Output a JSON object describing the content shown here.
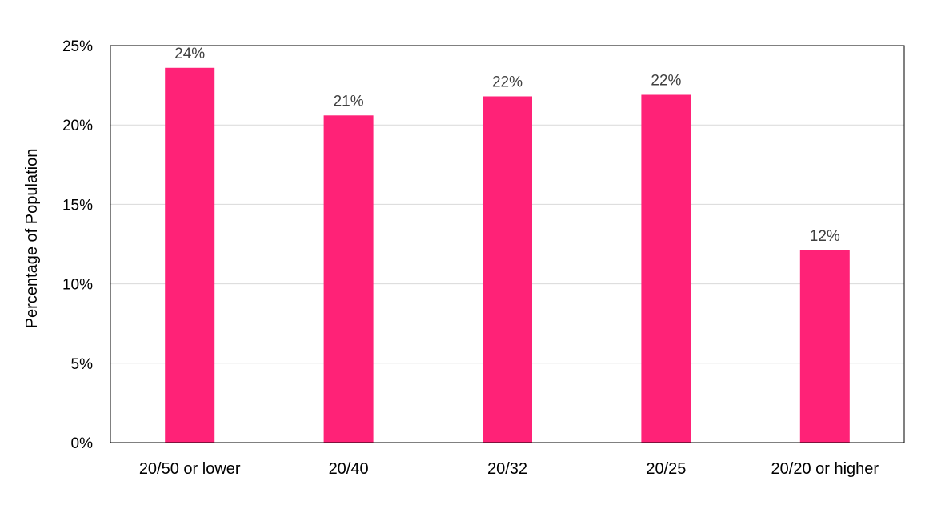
{
  "chart_data": {
    "type": "bar",
    "title": "",
    "xlabel": "",
    "ylabel": "Percentage of Population",
    "categories": [
      "20/50 or lower",
      "20/40",
      "20/32",
      "20/25",
      "20/20 or higher"
    ],
    "values": [
      23.6,
      20.6,
      21.8,
      21.9,
      12.1
    ],
    "data_labels": [
      "24%",
      "21%",
      "22%",
      "22%",
      "12%"
    ],
    "ylim": [
      0,
      25
    ],
    "yticks": [
      0,
      5,
      10,
      15,
      20,
      25
    ],
    "ytick_labels": [
      "0%",
      "5%",
      "10%",
      "15%",
      "20%",
      "25%"
    ],
    "grid": true,
    "bar_color": "#ff2277"
  }
}
